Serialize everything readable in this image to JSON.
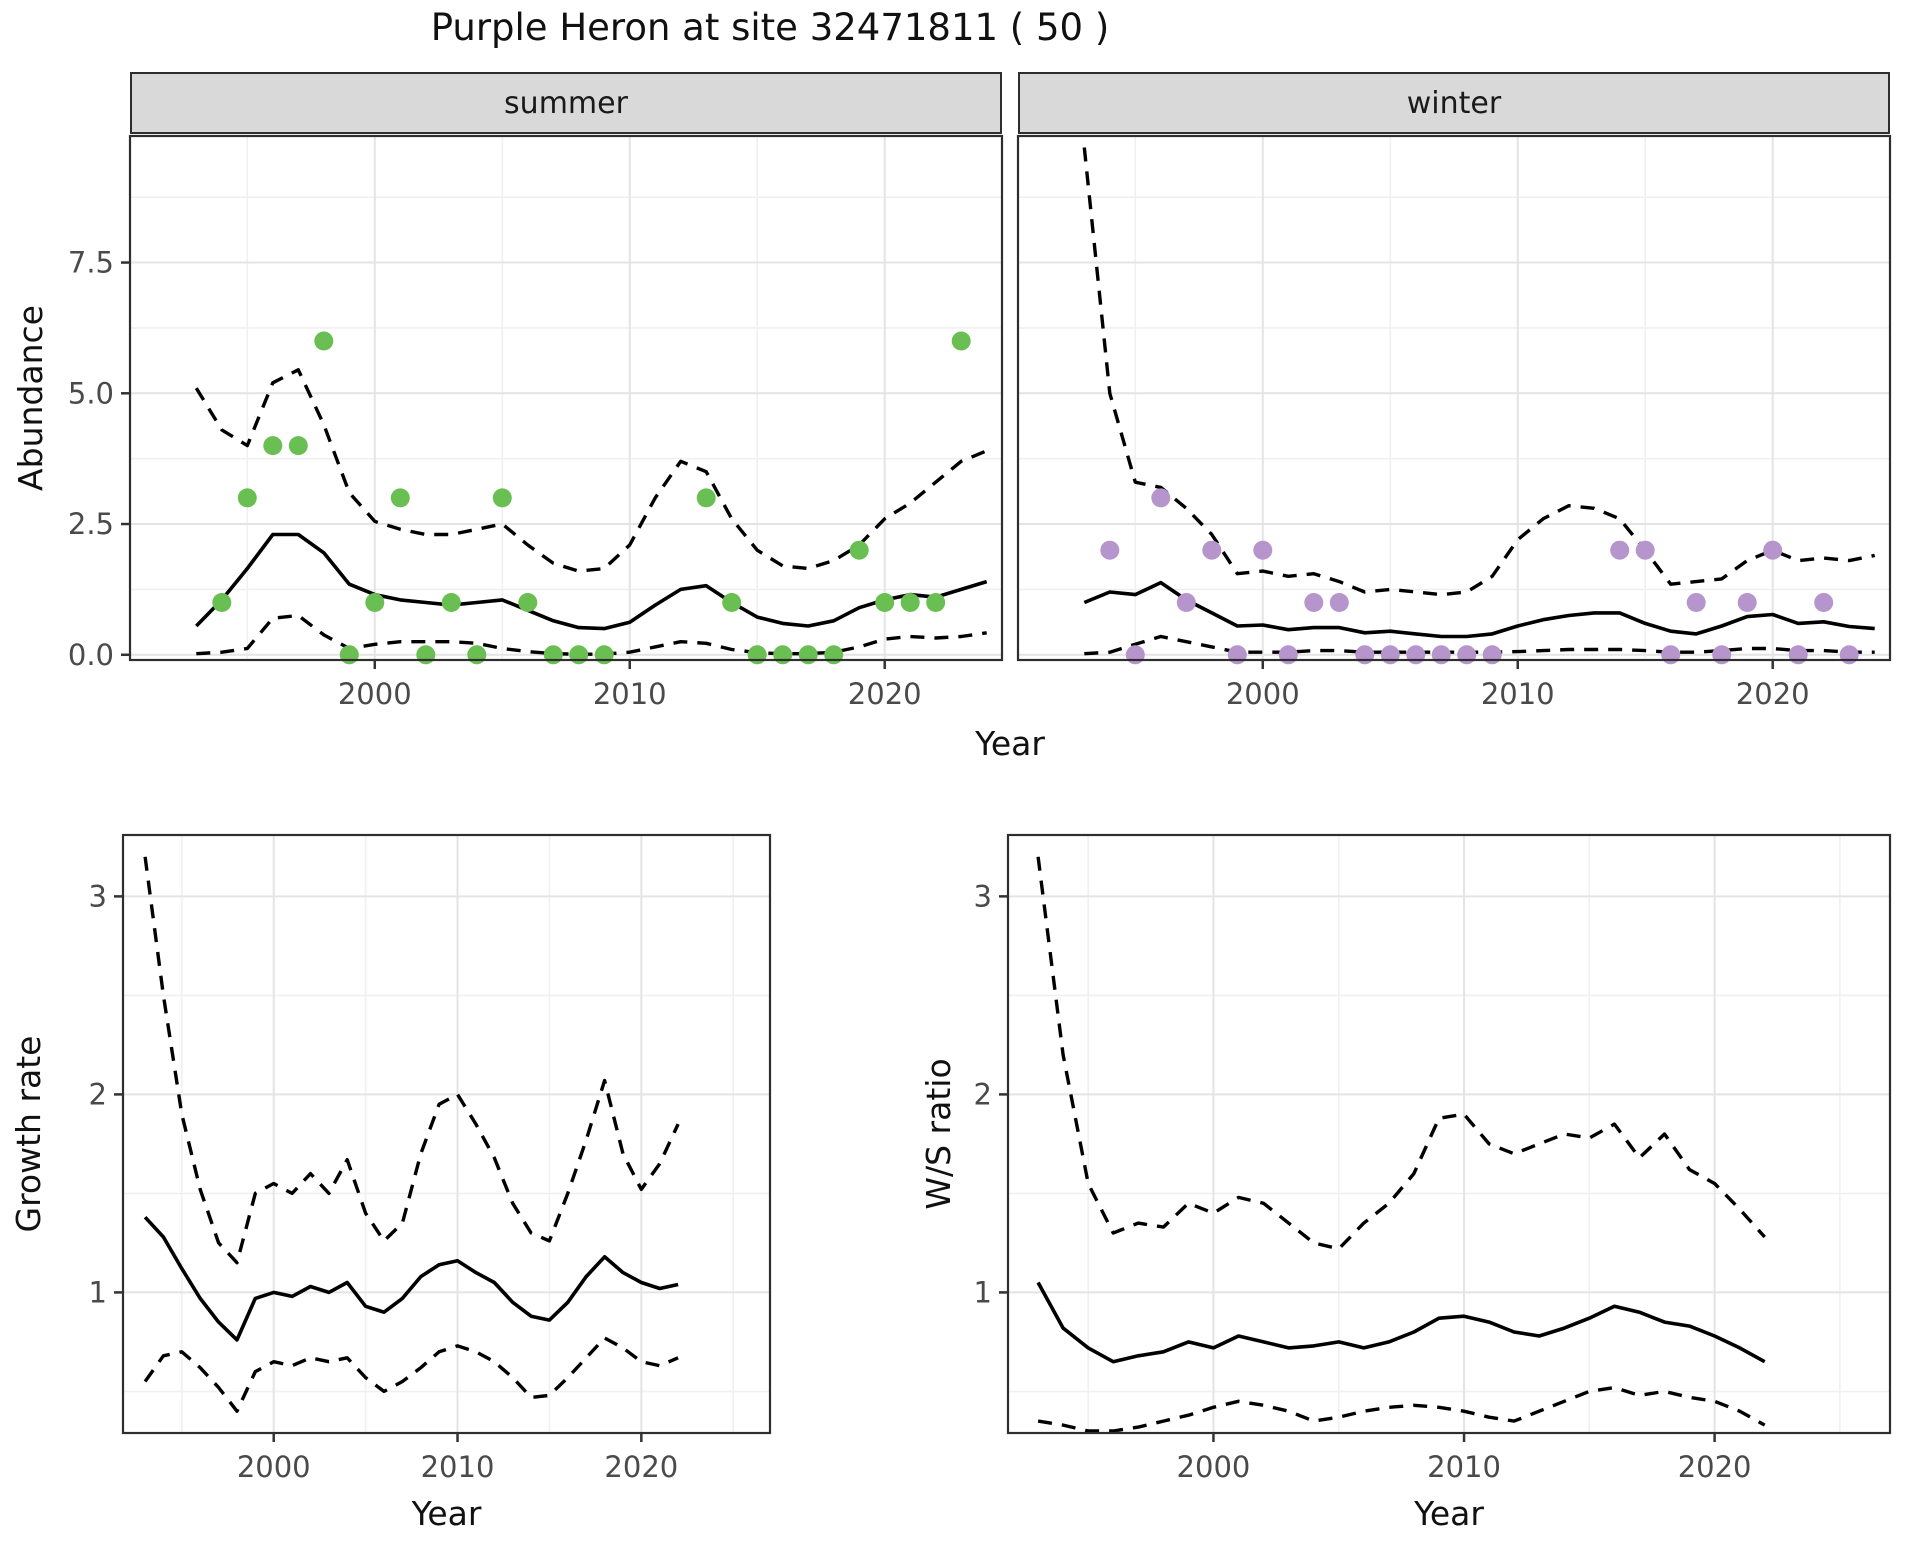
{
  "title": "Purple Heron at site 32471811 ( 50 )",
  "facets": {
    "summer": "summer",
    "winter": "winter"
  },
  "axis_titles": {
    "x": "Year",
    "y_top": "Abundance",
    "y_growth": "Growth rate",
    "y_ws": "W/S ratio"
  },
  "colors": {
    "summer_points": "#6abf53",
    "winter_points": "#b694cc",
    "fit_line": "#000000",
    "ci_line": "#000000",
    "strip_bg": "#d9d9d9",
    "panel_border": "#2e2e2e",
    "grid_major": "#e4e4e4",
    "grid_minor": "#f0f0f0",
    "tick_text": "#4a4a4a"
  },
  "chart_data": [
    {
      "name": "abundance-summer",
      "type": "scatter+line",
      "facet": "summer",
      "xlabel": "Year",
      "ylabel": "Abundance",
      "xlim": [
        1990.4,
        2024.6
      ],
      "ylim": [
        -0.1,
        9.92
      ],
      "x_ticks": {
        "values": [
          2000,
          2010,
          2020
        ],
        "labels": [
          "2000",
          "2010",
          "2020"
        ],
        "minor": [
          1995,
          2005,
          2015
        ]
      },
      "y_ticks": {
        "values": [
          0,
          2.5,
          5,
          7.5
        ],
        "labels": [
          "0.0",
          "2.5",
          "5.0",
          "7.5"
        ],
        "minor": [
          1.25,
          3.75,
          6.25,
          8.75
        ],
        "show_labels": true
      },
      "observations": {
        "years": [
          1994,
          1995,
          1996,
          1997,
          1998,
          1999,
          2000,
          2001,
          2002,
          2003,
          2004,
          2005,
          2006,
          2007,
          2008,
          2009,
          2013,
          2014,
          2015,
          2016,
          2017,
          2018,
          2019,
          2020,
          2021,
          2022,
          2023
        ],
        "values": [
          1,
          3,
          4,
          4,
          6,
          0,
          1,
          3,
          0,
          1,
          0,
          3,
          1,
          0,
          0,
          0,
          3,
          1,
          0,
          0,
          0,
          0,
          2,
          1,
          1,
          1,
          6
        ]
      },
      "fit": {
        "start_year": 1993,
        "values": [
          0.55,
          1.05,
          1.65,
          2.3,
          2.3,
          1.95,
          1.35,
          1.15,
          1.05,
          1.0,
          0.95,
          1.0,
          1.05,
          0.85,
          0.65,
          0.52,
          0.5,
          0.62,
          0.95,
          1.25,
          1.32,
          1.0,
          0.72,
          0.6,
          0.55,
          0.65,
          0.9,
          1.05,
          1.15,
          1.1,
          1.25,
          1.4
        ]
      },
      "upper_ci": {
        "start_year": 1993,
        "values": [
          5.1,
          4.3,
          4.0,
          5.2,
          5.45,
          4.4,
          3.1,
          2.55,
          2.4,
          2.3,
          2.3,
          2.4,
          2.5,
          2.1,
          1.75,
          1.6,
          1.65,
          2.1,
          3.0,
          3.7,
          3.5,
          2.6,
          2.0,
          1.7,
          1.65,
          1.8,
          2.1,
          2.6,
          2.9,
          3.3,
          3.7,
          3.9
        ]
      },
      "lower_ci": {
        "start_year": 1993,
        "values": [
          0.02,
          0.05,
          0.12,
          0.7,
          0.75,
          0.38,
          0.12,
          0.2,
          0.25,
          0.25,
          0.25,
          0.22,
          0.12,
          0.06,
          0.02,
          0.01,
          0.01,
          0.05,
          0.15,
          0.25,
          0.22,
          0.1,
          0.04,
          0.02,
          0.02,
          0.05,
          0.15,
          0.3,
          0.35,
          0.32,
          0.35,
          0.42
        ]
      }
    },
    {
      "name": "abundance-winter",
      "type": "scatter+line",
      "facet": "winter",
      "xlabel": "Year",
      "ylabel": "Abundance",
      "xlim": [
        1990.4,
        2024.6
      ],
      "ylim": [
        -0.1,
        9.92
      ],
      "x_ticks": {
        "values": [
          2000,
          2010,
          2020
        ],
        "labels": [
          "2000",
          "2010",
          "2020"
        ],
        "minor": [
          1995,
          2005,
          2015
        ]
      },
      "y_ticks": {
        "values": [
          0,
          2.5,
          5,
          7.5
        ],
        "labels": [
          "0.0",
          "2.5",
          "5.0",
          "7.5"
        ],
        "minor": [
          1.25,
          3.75,
          6.25,
          8.75
        ],
        "show_labels": false
      },
      "observations": {
        "years": [
          1994,
          1995,
          1996,
          1997,
          1998,
          1999,
          2000,
          2001,
          2002,
          2003,
          2004,
          2005,
          2006,
          2007,
          2008,
          2009,
          2014,
          2015,
          2016,
          2017,
          2018,
          2019,
          2020,
          2021,
          2022,
          2023
        ],
        "values": [
          2,
          0,
          3,
          1,
          2,
          0,
          2,
          0,
          1,
          1,
          0,
          0,
          0,
          0,
          0,
          0,
          2,
          2,
          0,
          1,
          0,
          1,
          2,
          0,
          1,
          0
        ]
      },
      "fit": {
        "start_year": 1993,
        "values": [
          1.0,
          1.2,
          1.15,
          1.38,
          1.05,
          0.8,
          0.55,
          0.57,
          0.48,
          0.52,
          0.52,
          0.42,
          0.45,
          0.4,
          0.35,
          0.35,
          0.4,
          0.55,
          0.67,
          0.75,
          0.8,
          0.8,
          0.6,
          0.45,
          0.4,
          0.55,
          0.73,
          0.77,
          0.6,
          0.63,
          0.54,
          0.5
        ]
      },
      "upper_ci": {
        "start_year": 1993,
        "values": [
          9.7,
          5.0,
          3.3,
          3.2,
          2.8,
          2.3,
          1.55,
          1.6,
          1.5,
          1.55,
          1.4,
          1.2,
          1.25,
          1.2,
          1.15,
          1.2,
          1.5,
          2.2,
          2.6,
          2.85,
          2.8,
          2.6,
          2.0,
          1.35,
          1.4,
          1.45,
          1.8,
          2.0,
          1.8,
          1.85,
          1.8,
          1.9
        ]
      },
      "lower_ci": {
        "start_year": 1993,
        "values": [
          0.02,
          0.05,
          0.2,
          0.35,
          0.25,
          0.15,
          0.05,
          0.05,
          0.05,
          0.08,
          0.08,
          0.05,
          0.05,
          0.05,
          0.05,
          0.05,
          0.05,
          0.06,
          0.08,
          0.1,
          0.1,
          0.1,
          0.08,
          0.05,
          0.05,
          0.08,
          0.12,
          0.12,
          0.08,
          0.08,
          0.05,
          0.05
        ]
      }
    },
    {
      "name": "growth-rate",
      "type": "line",
      "facet": null,
      "xlabel": "Year",
      "ylabel": "Growth rate",
      "xlim": [
        1991.8,
        2027.0
      ],
      "ylim": [
        0.29,
        3.31
      ],
      "x_ticks": {
        "values": [
          2000,
          2010,
          2020
        ],
        "labels": [
          "2000",
          "2010",
          "2020"
        ],
        "minor": [
          1995,
          2005,
          2015,
          2025
        ]
      },
      "y_ticks": {
        "values": [
          1,
          2,
          3
        ],
        "labels": [
          "1",
          "2",
          "3"
        ],
        "minor": [
          0.5,
          1.5,
          2.5
        ],
        "show_labels": true
      },
      "observations": null,
      "fit": {
        "start_year": 1993,
        "values": [
          1.38,
          1.28,
          1.12,
          0.97,
          0.85,
          0.76,
          0.97,
          1.0,
          0.98,
          1.03,
          1.0,
          1.05,
          0.93,
          0.9,
          0.97,
          1.08,
          1.14,
          1.16,
          1.1,
          1.05,
          0.95,
          0.88,
          0.86,
          0.95,
          1.08,
          1.18,
          1.1,
          1.05,
          1.02,
          1.04
        ]
      },
      "upper_ci": {
        "start_year": 1993,
        "values": [
          3.2,
          2.5,
          1.9,
          1.52,
          1.25,
          1.15,
          1.5,
          1.55,
          1.5,
          1.6,
          1.5,
          1.67,
          1.4,
          1.26,
          1.35,
          1.7,
          1.95,
          2.0,
          1.85,
          1.68,
          1.45,
          1.3,
          1.26,
          1.5,
          1.77,
          2.07,
          1.7,
          1.52,
          1.65,
          1.85
        ]
      },
      "lower_ci": {
        "start_year": 1993,
        "values": [
          0.55,
          0.68,
          0.7,
          0.62,
          0.52,
          0.4,
          0.6,
          0.65,
          0.63,
          0.67,
          0.65,
          0.67,
          0.57,
          0.5,
          0.55,
          0.62,
          0.7,
          0.73,
          0.7,
          0.65,
          0.57,
          0.47,
          0.48,
          0.57,
          0.67,
          0.77,
          0.72,
          0.65,
          0.63,
          0.67
        ]
      }
    },
    {
      "name": "ws-ratio",
      "type": "line",
      "facet": null,
      "xlabel": "Year",
      "ylabel": "W/S ratio",
      "xlim": [
        1991.8,
        2027.0
      ],
      "ylim": [
        0.29,
        3.31
      ],
      "x_ticks": {
        "values": [
          2000,
          2010,
          2020
        ],
        "labels": [
          "2000",
          "2010",
          "2020"
        ],
        "minor": [
          1995,
          2005,
          2015,
          2025
        ]
      },
      "y_ticks": {
        "values": [
          1,
          2,
          3
        ],
        "labels": [
          "1",
          "2",
          "3"
        ],
        "minor": [
          0.5,
          1.5,
          2.5
        ],
        "show_labels": true
      },
      "observations": null,
      "fit": {
        "start_year": 1993,
        "values": [
          1.05,
          0.82,
          0.72,
          0.65,
          0.68,
          0.7,
          0.75,
          0.72,
          0.78,
          0.75,
          0.72,
          0.73,
          0.75,
          0.72,
          0.75,
          0.8,
          0.87,
          0.88,
          0.85,
          0.8,
          0.78,
          0.82,
          0.87,
          0.93,
          0.9,
          0.85,
          0.83,
          0.78,
          0.72,
          0.65
        ]
      },
      "upper_ci": {
        "start_year": 1993,
        "values": [
          3.2,
          2.2,
          1.55,
          1.3,
          1.35,
          1.33,
          1.45,
          1.4,
          1.48,
          1.45,
          1.35,
          1.25,
          1.22,
          1.35,
          1.45,
          1.6,
          1.88,
          1.9,
          1.75,
          1.7,
          1.75,
          1.8,
          1.78,
          1.85,
          1.68,
          1.8,
          1.62,
          1.55,
          1.42,
          1.28
        ]
      },
      "lower_ci": {
        "start_year": 1993,
        "values": [
          0.35,
          0.33,
          0.3,
          0.3,
          0.32,
          0.35,
          0.38,
          0.42,
          0.45,
          0.43,
          0.4,
          0.35,
          0.37,
          0.4,
          0.42,
          0.43,
          0.42,
          0.4,
          0.37,
          0.35,
          0.4,
          0.45,
          0.5,
          0.52,
          0.48,
          0.5,
          0.47,
          0.45,
          0.4,
          0.33
        ]
      }
    }
  ]
}
